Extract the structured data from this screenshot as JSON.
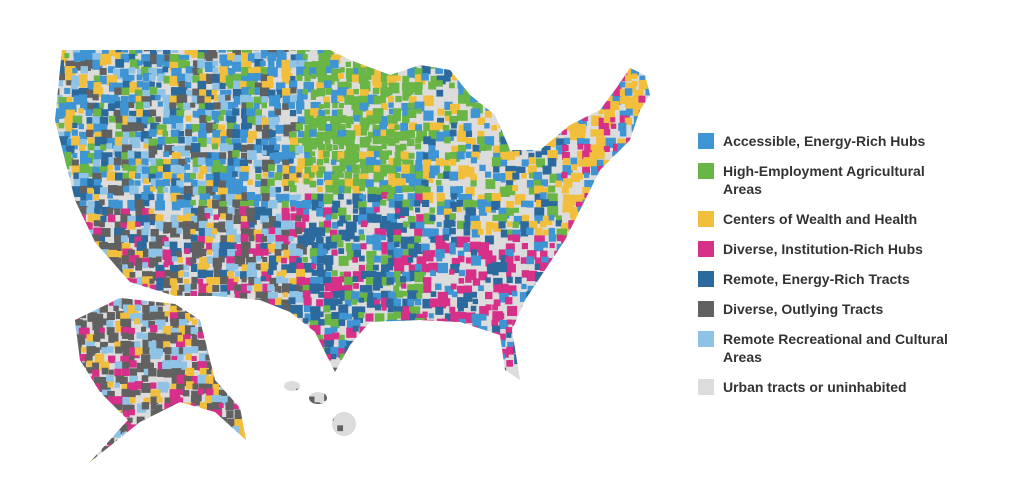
{
  "legend": {
    "items": [
      {
        "label": "Accessible, Energy-Rich Hubs",
        "color": "#3f94d3"
      },
      {
        "label": "High-Employment Agricultural Areas",
        "color": "#69b545"
      },
      {
        "label": "Centers of Wealth and Health",
        "color": "#f2bf3c"
      },
      {
        "label": "Diverse, Institution-Rich Hubs",
        "color": "#d63088"
      },
      {
        "label": "Remote, Energy-Rich Tracts",
        "color": "#2c6a9e"
      },
      {
        "label": "Diverse, Outlying Tracts",
        "color": "#616161"
      },
      {
        "label": "Remote Recreational and Cultural Areas",
        "color": "#8fc3e6"
      },
      {
        "label": "Urban tracts or uninhabited",
        "color": "#dcdcdc"
      }
    ]
  }
}
